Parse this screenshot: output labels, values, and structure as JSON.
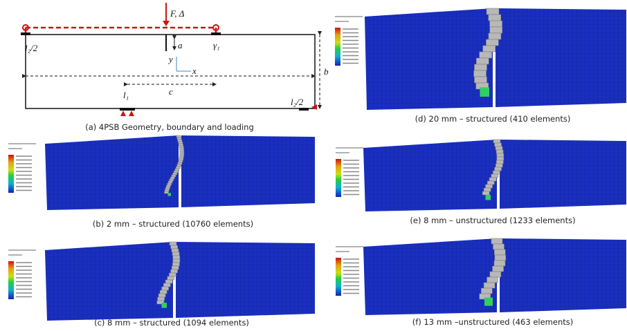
{
  "figure": {
    "geometry": {
      "load": "F, Δ",
      "left_support": "l₂/2",
      "notch": "a",
      "y_axis": "y",
      "x_axis": "x",
      "span": "c",
      "height": "b",
      "load_span": "l₁",
      "right_support": "l₂/2",
      "rotation": "γ₁"
    },
    "panels": [
      {
        "caption": "(a) 4PSB Geometry, boundary and loading"
      },
      {
        "caption": "(d) 20 mm – structured (410 elements)"
      },
      {
        "caption": "(b) 2 mm – structured (10760 elements)"
      },
      {
        "caption": "(e) 8 mm – unstructured (1233 elements)"
      },
      {
        "caption": "(c) 8 mm – structured (1094 elements)"
      },
      {
        "caption": "(f) 13 mm –unstructured (463 elements)"
      }
    ]
  }
}
